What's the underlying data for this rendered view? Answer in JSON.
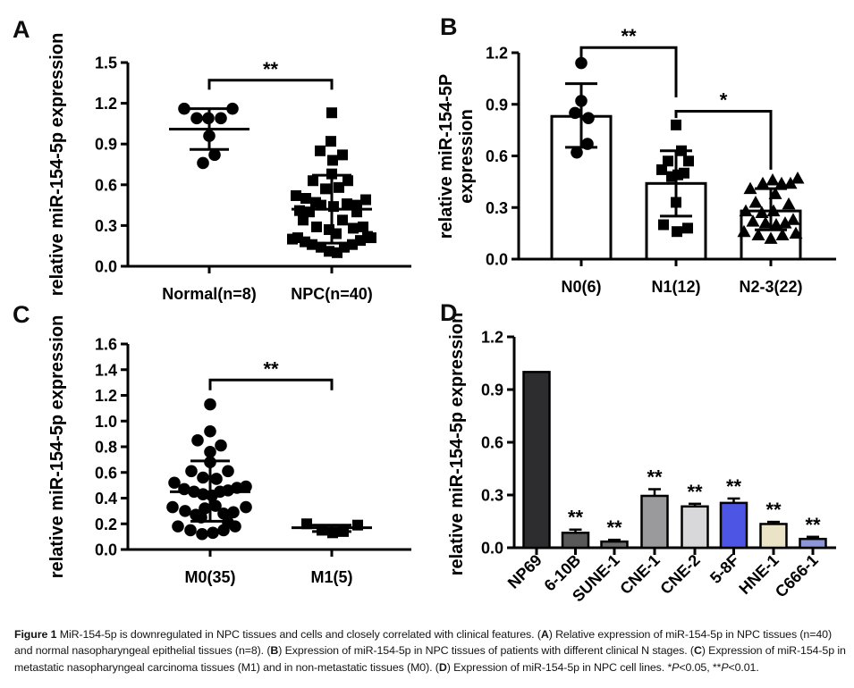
{
  "chart_data": [
    {
      "id": "A",
      "label": "A",
      "type": "scatter",
      "ylabel": [
        "relative miR-154-5p expression"
      ],
      "ylim": [
        0,
        1.5
      ],
      "yticks": [
        "0.0",
        "0.3",
        "0.6",
        "0.9",
        "1.2",
        "1.5"
      ],
      "groups": [
        {
          "label": "Normal(n=8)",
          "marker": "circle",
          "mean": 1.01,
          "err_lo": 0.86,
          "err_hi": 1.16,
          "points": [
            [
              -28,
              1.16
            ],
            [
              26,
              1.16
            ],
            [
              -14,
              1.09
            ],
            [
              -1,
              1.09
            ],
            [
              13,
              1.09
            ],
            [
              0,
              0.96
            ],
            [
              6,
              0.82
            ],
            [
              -7,
              0.76
            ]
          ]
        },
        {
          "label": "NPC(n=40)",
          "marker": "square",
          "mean": 0.42,
          "err_lo": 0.17,
          "err_hi": 0.67,
          "points": [
            [
              0,
              1.13
            ],
            [
              -1,
              0.92
            ],
            [
              -13,
              0.85
            ],
            [
              12,
              0.82
            ],
            [
              1,
              0.78
            ],
            [
              0,
              0.68
            ],
            [
              -21,
              0.63
            ],
            [
              18,
              0.63
            ],
            [
              -7,
              0.57
            ],
            [
              8,
              0.58
            ],
            [
              -40,
              0.52
            ],
            [
              -29,
              0.5
            ],
            [
              -18,
              0.47
            ],
            [
              -36,
              0.41
            ],
            [
              -25,
              0.4
            ],
            [
              -12,
              0.45
            ],
            [
              2,
              0.44
            ],
            [
              17,
              0.46
            ],
            [
              28,
              0.45
            ],
            [
              38,
              0.49
            ],
            [
              28,
              0.4
            ],
            [
              -32,
              0.34
            ],
            [
              -17,
              0.29
            ],
            [
              -3,
              0.27
            ],
            [
              12,
              0.34
            ],
            [
              24,
              0.28
            ],
            [
              35,
              0.29
            ],
            [
              -38,
              0.21
            ],
            [
              -30,
              0.18
            ],
            [
              -22,
              0.16
            ],
            [
              -12,
              0.14
            ],
            [
              -3,
              0.11
            ],
            [
              6,
              0.1
            ],
            [
              14,
              0.14
            ],
            [
              23,
              0.16
            ],
            [
              32,
              0.19
            ],
            [
              40,
              0.22
            ],
            [
              -44,
              0.2
            ],
            [
              44,
              0.21
            ],
            [
              5,
              0.24
            ]
          ]
        }
      ],
      "brackets": [
        {
          "g1": 0,
          "g2": 1,
          "y": 1.37,
          "leg1": 1.3,
          "leg2": 1.3,
          "label": "**"
        }
      ]
    },
    {
      "id": "B",
      "label": "B",
      "type": "bar-scatter",
      "ylabel": [
        "relative miR-154-5P",
        "expression"
      ],
      "ylim": [
        0,
        1.2
      ],
      "yticks": [
        "0.0",
        "0.3",
        "0.6",
        "0.9",
        "1.2"
      ],
      "groups": [
        {
          "label": "N0(6)",
          "marker": "circle",
          "bar": 0.83,
          "err_lo": 0.65,
          "err_hi": 1.02,
          "points": [
            [
              0,
              1.14
            ],
            [
              0,
              0.92
            ],
            [
              -7,
              0.85
            ],
            [
              8,
              0.82
            ],
            [
              7,
              0.67
            ],
            [
              -5,
              0.62
            ]
          ]
        },
        {
          "label": "N1(12)",
          "marker": "square",
          "bar": 0.44,
          "err_lo": 0.25,
          "err_hi": 0.63,
          "points": [
            [
              0,
              0.78
            ],
            [
              6,
              0.63
            ],
            [
              14,
              0.57
            ],
            [
              -9,
              0.57
            ],
            [
              -16,
              0.52
            ],
            [
              2,
              0.49
            ],
            [
              9,
              0.5
            ],
            [
              -5,
              0.48
            ],
            [
              0,
              0.33
            ],
            [
              -14,
              0.2
            ],
            [
              1,
              0.16
            ],
            [
              13,
              0.18
            ]
          ]
        },
        {
          "label": "N2-3(22)",
          "marker": "triangle",
          "bar": 0.28,
          "err_lo": 0.17,
          "err_hi": 0.41,
          "points": [
            [
              -23,
              0.41
            ],
            [
              -9,
              0.44
            ],
            [
              2,
              0.46
            ],
            [
              12,
              0.44
            ],
            [
              22,
              0.44
            ],
            [
              30,
              0.47
            ],
            [
              -17,
              0.33
            ],
            [
              5,
              0.38
            ],
            [
              20,
              0.32
            ],
            [
              -28,
              0.28
            ],
            [
              -10,
              0.27
            ],
            [
              3,
              0.28
            ],
            [
              -20,
              0.22
            ],
            [
              -6,
              0.21
            ],
            [
              6,
              0.2
            ],
            [
              16,
              0.21
            ],
            [
              25,
              0.23
            ],
            [
              -30,
              0.16
            ],
            [
              -14,
              0.14
            ],
            [
              0,
              0.12
            ],
            [
              13,
              0.14
            ],
            [
              28,
              0.15
            ]
          ]
        }
      ],
      "brackets": [
        {
          "g1": 0,
          "g2": 1,
          "y": 1.23,
          "leg1": 1.13,
          "leg2": 0.94,
          "label": "**"
        },
        {
          "g1": 1,
          "g2": 2,
          "y": 0.86,
          "leg1": 0.82,
          "leg2": 0.52,
          "label": "*"
        }
      ]
    },
    {
      "id": "C",
      "label": "C",
      "type": "scatter",
      "ylabel": [
        "relative miR-154-5p expression"
      ],
      "ylim": [
        0,
        1.6
      ],
      "yticks": [
        "0.0",
        "0.2",
        "0.4",
        "0.6",
        "0.8",
        "1.0",
        "1.2",
        "1.4",
        "1.6"
      ],
      "groups": [
        {
          "label": "M0(35)",
          "marker": "circle",
          "mean": 0.45,
          "err_lo": 0.22,
          "err_hi": 0.69,
          "points": [
            [
              0,
              1.13
            ],
            [
              0,
              0.92
            ],
            [
              -14,
              0.85
            ],
            [
              12,
              0.81
            ],
            [
              0,
              0.76
            ],
            [
              0,
              0.68
            ],
            [
              -21,
              0.61
            ],
            [
              20,
              0.61
            ],
            [
              -8,
              0.56
            ],
            [
              7,
              0.55
            ],
            [
              -40,
              0.52
            ],
            [
              -29,
              0.47
            ],
            [
              -18,
              0.45
            ],
            [
              -8,
              0.43
            ],
            [
              2,
              0.42
            ],
            [
              11,
              0.45
            ],
            [
              20,
              0.46
            ],
            [
              30,
              0.48
            ],
            [
              40,
              0.49
            ],
            [
              -42,
              0.33
            ],
            [
              -28,
              0.3
            ],
            [
              -16,
              0.27
            ],
            [
              -6,
              0.32
            ],
            [
              6,
              0.34
            ],
            [
              15,
              0.28
            ],
            [
              26,
              0.29
            ],
            [
              40,
              0.33
            ],
            [
              -36,
              0.18
            ],
            [
              -22,
              0.15
            ],
            [
              -9,
              0.12
            ],
            [
              3,
              0.13
            ],
            [
              15,
              0.15
            ],
            [
              28,
              0.18
            ],
            [
              -10,
              0.25
            ],
            [
              20,
              0.21
            ]
          ]
        },
        {
          "label": "M1(5)",
          "marker": "square",
          "mean": 0.17,
          "err_lo": 0.14,
          "err_hi": 0.19,
          "points": [
            [
              -28,
              0.2
            ],
            [
              -11,
              0.15
            ],
            [
              1,
              0.13
            ],
            [
              13,
              0.14
            ],
            [
              29,
              0.19
            ]
          ]
        }
      ],
      "brackets": [
        {
          "g1": 0,
          "g2": 1,
          "y": 1.32,
          "leg1": 1.24,
          "leg2": 1.24,
          "label": "**"
        }
      ]
    },
    {
      "id": "D",
      "label": "D",
      "type": "bar",
      "ylabel": [
        "relative miR-154-5p expression"
      ],
      "ylim": [
        0,
        1.2
      ],
      "yticks": [
        "0.0",
        "0.3",
        "0.6",
        "0.9",
        "1.2"
      ],
      "bars": [
        {
          "label": "NP69",
          "value": 1.0,
          "err": 0,
          "color": "#2d2d2f",
          "sig": ""
        },
        {
          "label": "6-10B",
          "value": 0.085,
          "err": 0.018,
          "color": "#595959",
          "sig": "**"
        },
        {
          "label": "SUNE-1",
          "value": 0.035,
          "err": 0.01,
          "color": "#6b6b6b",
          "sig": "**"
        },
        {
          "label": "CNE-1",
          "value": 0.295,
          "err": 0.038,
          "color": "#9a9a9c",
          "sig": "**"
        },
        {
          "label": "CNE-2",
          "value": 0.235,
          "err": 0.015,
          "color": "#d8d8da",
          "sig": "**"
        },
        {
          "label": "5-8F",
          "value": 0.255,
          "err": 0.025,
          "color": "#4d55e4",
          "sig": "**"
        },
        {
          "label": "HNE-1",
          "value": 0.135,
          "err": 0.012,
          "color": "#ebe3c5",
          "sig": "**"
        },
        {
          "label": "C666-1",
          "value": 0.05,
          "err": 0.012,
          "color": "#8c96d8",
          "sig": "**"
        }
      ]
    }
  ],
  "caption": {
    "segments": [
      {
        "t": "Figure 1 ",
        "b": true
      },
      {
        "t": "MiR-154-5p is downregulated in NPC tissues and cells and closely correlated with clinical features. ("
      },
      {
        "t": "A",
        "b": true
      },
      {
        "t": ") Relative expression of miR-154-5p in NPC tissues (n=40) and normal nasopharyngeal epithelial tissues (n=8). ("
      },
      {
        "t": "B",
        "b": true
      },
      {
        "t": ") Expression of miR-154-5p in NPC tissues of patients with different clinical N stages. ("
      },
      {
        "t": "C",
        "b": true
      },
      {
        "t": ") Expression of miR-154-5p in metastatic nasopharyngeal carcinoma tissues (M1) and in non-metastatic tissues (M0). ("
      },
      {
        "t": "D",
        "b": true
      },
      {
        "t": ") Expression of miR-154-5p in NPC cell lines. *"
      },
      {
        "t": "P",
        "i": true
      },
      {
        "t": "<0.05, **"
      },
      {
        "t": "P",
        "i": true
      },
      {
        "t": "<0.01."
      }
    ]
  }
}
